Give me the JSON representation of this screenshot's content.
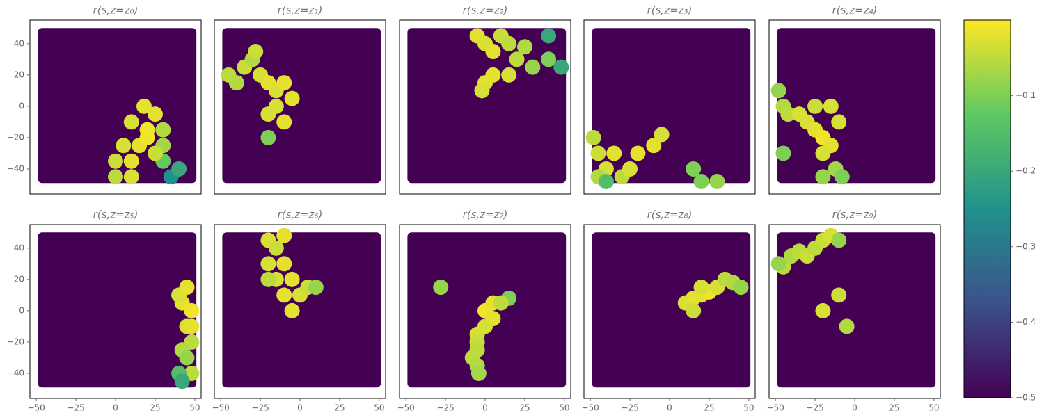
{
  "chart_data": [
    {
      "type": "scatter",
      "title": "r(s,z=z₀)",
      "xlim": [
        -54,
        54
      ],
      "ylim": [
        -56,
        55
      ],
      "yticks": [
        {
          "value": -40,
          "label": "−40"
        },
        {
          "value": -20,
          "label": "−20"
        },
        0,
        20,
        40
      ],
      "x": [
        18,
        25,
        10,
        20,
        30,
        5,
        15,
        30,
        0,
        10,
        30,
        0,
        10,
        35,
        40,
        20,
        25
      ],
      "y": [
        0,
        -5,
        -10,
        -15,
        -15,
        -25,
        -25,
        -25,
        -35,
        -35,
        -35,
        -45,
        -45,
        -45,
        -40,
        -20,
        -30
      ],
      "c": [
        -0.02,
        -0.02,
        -0.03,
        -0.01,
        -0.06,
        -0.03,
        -0.02,
        -0.07,
        -0.04,
        -0.02,
        -0.12,
        -0.05,
        -0.03,
        -0.25,
        -0.2,
        -0.01,
        -0.04
      ]
    },
    {
      "type": "scatter",
      "title": "r(s,z=z₁)",
      "xlim": [
        -54,
        54
      ],
      "ylim": [
        -56,
        55
      ],
      "x": [
        -45,
        -35,
        -30,
        -25,
        -20,
        -15,
        -10,
        -5,
        -15,
        -10,
        -20,
        -20,
        -40,
        -28
      ],
      "y": [
        20,
        25,
        30,
        20,
        15,
        10,
        15,
        5,
        0,
        -10,
        -5,
        -20,
        15,
        35
      ],
      "c": [
        -0.05,
        -0.04,
        -0.06,
        -0.03,
        -0.02,
        -0.03,
        -0.02,
        -0.02,
        -0.03,
        -0.02,
        -0.03,
        -0.1,
        -0.06,
        -0.04
      ]
    },
    {
      "type": "scatter",
      "title": "r(s,z=z₂)",
      "xlim": [
        -54,
        54
      ],
      "ylim": [
        -56,
        55
      ],
      "x": [
        -5,
        0,
        5,
        10,
        15,
        20,
        25,
        30,
        40,
        48,
        40,
        5,
        0,
        -2,
        15
      ],
      "y": [
        45,
        40,
        35,
        45,
        40,
        30,
        38,
        25,
        30,
        25,
        45,
        20,
        15,
        10,
        20
      ],
      "c": [
        -0.02,
        -0.03,
        -0.02,
        -0.04,
        -0.05,
        -0.05,
        -0.06,
        -0.08,
        -0.1,
        -0.2,
        -0.2,
        -0.02,
        -0.02,
        -0.03,
        -0.03
      ]
    },
    {
      "type": "scatter",
      "title": "r(s,z=z₃)",
      "xlim": [
        -54,
        54
      ],
      "ylim": [
        -56,
        55
      ],
      "x": [
        -48,
        -45,
        -40,
        -35,
        -30,
        -25,
        -20,
        -10,
        -5,
        -45,
        15,
        20,
        30,
        -40
      ],
      "y": [
        -20,
        -30,
        -40,
        -30,
        -45,
        -40,
        -30,
        -25,
        -18,
        -45,
        -40,
        -48,
        -48,
        -48
      ],
      "c": [
        -0.05,
        -0.04,
        -0.03,
        -0.02,
        -0.05,
        -0.03,
        -0.02,
        -0.02,
        -0.03,
        -0.06,
        -0.1,
        -0.1,
        -0.08,
        -0.15
      ]
    },
    {
      "type": "scatter",
      "title": "r(s,z=z₄)",
      "xlim": [
        -54,
        54
      ],
      "ylim": [
        -56,
        55
      ],
      "x": [
        -48,
        -45,
        -42,
        -35,
        -30,
        -25,
        -20,
        -15,
        -20,
        -10,
        -25,
        -15,
        -12,
        -8,
        -20,
        -45
      ],
      "y": [
        10,
        0,
        -5,
        -5,
        -10,
        -15,
        -20,
        -25,
        -30,
        -10,
        0,
        0,
        -40,
        -45,
        -45,
        -30
      ],
      "c": [
        -0.08,
        -0.06,
        -0.05,
        -0.03,
        -0.03,
        -0.02,
        -0.01,
        -0.02,
        -0.03,
        -0.03,
        -0.04,
        -0.03,
        -0.07,
        -0.1,
        -0.08,
        -0.1
      ]
    },
    {
      "type": "scatter",
      "title": "r(s,z=z₅)",
      "xlim": [
        -54,
        54
      ],
      "ylim": [
        -56,
        55
      ],
      "xticks": [
        {
          "value": -50,
          "label": "−50"
        },
        {
          "value": -25,
          "label": "−25"
        },
        0,
        25,
        50
      ],
      "yticks": [
        {
          "value": -40,
          "label": "−40"
        },
        {
          "value": -20,
          "label": "−20"
        },
        0,
        20,
        40
      ],
      "x": [
        42,
        48,
        45,
        48,
        42,
        45,
        48,
        40,
        42,
        48,
        40,
        45
      ],
      "y": [
        5,
        0,
        -10,
        -20,
        -25,
        -30,
        -40,
        -40,
        -45,
        -10,
        10,
        15
      ],
      "c": [
        -0.02,
        -0.01,
        -0.03,
        -0.05,
        -0.06,
        -0.08,
        -0.05,
        -0.15,
        -0.2,
        -0.02,
        -0.03,
        -0.02
      ]
    },
    {
      "type": "scatter",
      "title": "r(s,z=z₆)",
      "xlim": [
        -54,
        54
      ],
      "ylim": [
        -56,
        55
      ],
      "xticks": [
        {
          "value": -50,
          "label": "−50"
        },
        {
          "value": -25,
          "label": "−25"
        },
        0,
        25,
        50
      ],
      "x": [
        -20,
        -10,
        -15,
        -20,
        -10,
        -15,
        -5,
        -10,
        0,
        -5,
        -20,
        5,
        10
      ],
      "y": [
        45,
        48,
        40,
        30,
        30,
        20,
        20,
        10,
        10,
        0,
        20,
        15,
        15
      ],
      "c": [
        -0.03,
        -0.02,
        -0.04,
        -0.03,
        -0.02,
        -0.03,
        -0.02,
        -0.02,
        -0.03,
        -0.02,
        -0.05,
        -0.04,
        -0.08
      ]
    },
    {
      "type": "scatter",
      "title": "r(s,z=z₇)",
      "xlim": [
        -54,
        54
      ],
      "ylim": [
        -56,
        55
      ],
      "xticks": [
        {
          "value": -50,
          "label": "−50"
        },
        {
          "value": -25,
          "label": "−25"
        },
        0,
        25,
        50
      ],
      "x": [
        -28,
        0,
        5,
        5,
        0,
        -5,
        -5,
        -5,
        -8,
        -5,
        -4,
        15,
        10
      ],
      "y": [
        15,
        0,
        5,
        -5,
        -10,
        -15,
        -20,
        -25,
        -30,
        -35,
        -40,
        8,
        5
      ],
      "c": [
        -0.08,
        -0.01,
        -0.02,
        -0.02,
        -0.03,
        -0.03,
        -0.04,
        -0.05,
        -0.05,
        -0.06,
        -0.07,
        -0.1,
        -0.05
      ]
    },
    {
      "type": "scatter",
      "title": "r(s,z=z₈)",
      "xlim": [
        -54,
        54
      ],
      "ylim": [
        -56,
        55
      ],
      "xticks": [
        {
          "value": -50,
          "label": "−50"
        },
        {
          "value": -25,
          "label": "−25"
        },
        0,
        25,
        50
      ],
      "x": [
        10,
        15,
        20,
        25,
        30,
        35,
        40,
        45,
        20,
        15
      ],
      "y": [
        5,
        8,
        10,
        12,
        15,
        20,
        18,
        15,
        15,
        0
      ],
      "c": [
        -0.03,
        -0.02,
        -0.02,
        -0.01,
        -0.03,
        -0.05,
        -0.06,
        -0.08,
        -0.03,
        -0.04
      ]
    },
    {
      "type": "scatter",
      "title": "r(s,z=z₉)",
      "xlim": [
        -54,
        54
      ],
      "ylim": [
        -56,
        55
      ],
      "xticks": [
        {
          "value": -50,
          "label": "−50"
        },
        {
          "value": -25,
          "label": "−25"
        },
        0,
        25,
        50
      ],
      "x": [
        -45,
        -40,
        -35,
        -30,
        -25,
        -20,
        -15,
        -10,
        -48,
        -20,
        -10,
        -5
      ],
      "y": [
        28,
        35,
        38,
        35,
        40,
        45,
        48,
        45,
        30,
        0,
        10,
        -10
      ],
      "c": [
        -0.05,
        -0.06,
        -0.05,
        -0.04,
        -0.05,
        -0.04,
        -0.03,
        -0.08,
        -0.08,
        -0.03,
        -0.04,
        -0.06
      ]
    },
    {
      "type": "colorbar",
      "clim": [
        -0.5,
        0
      ],
      "ticks": [
        {
          "value": -0.5,
          "label": "−0.5"
        },
        {
          "value": -0.4,
          "label": "−0.4"
        },
        {
          "value": -0.3,
          "label": "−0.3"
        },
        {
          "value": -0.2,
          "label": "−0.2"
        },
        {
          "value": -0.1,
          "label": "−0.1"
        }
      ]
    }
  ]
}
